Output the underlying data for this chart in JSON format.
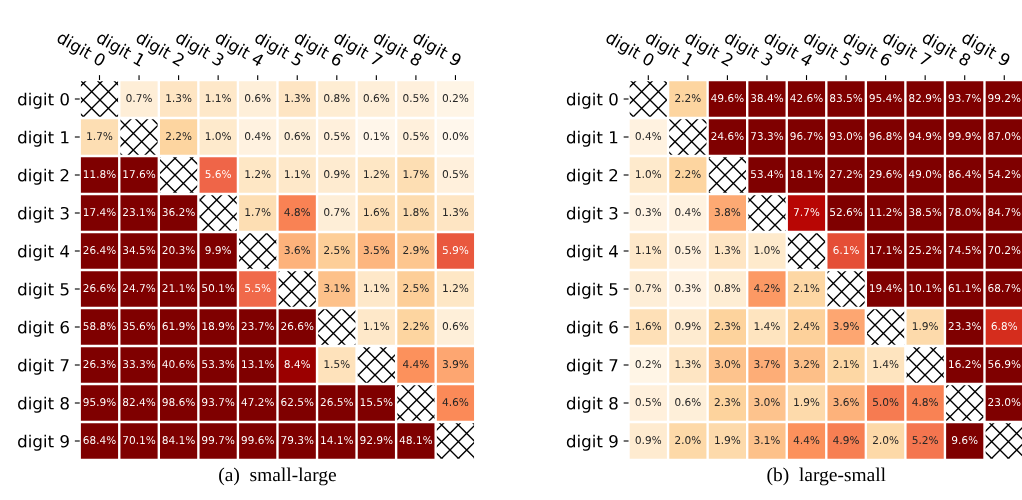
{
  "chart_data": [
    {
      "type": "heatmap",
      "xlabel": "(a)  small-large",
      "categories": [
        "digit 0",
        "digit 1",
        "digit 2",
        "digit 3",
        "digit 4",
        "digit 5",
        "digit 6",
        "digit 7",
        "digit 8",
        "digit 9"
      ],
      "y_categories": [
        "digit 0",
        "digit 1",
        "digit 2",
        "digit 3",
        "digit 4",
        "digit 5",
        "digit 6",
        "digit 7",
        "digit 8",
        "digit 9"
      ],
      "cells": [
        [
          null,
          0.7,
          1.3,
          1.1,
          0.6,
          1.3,
          0.8,
          0.6,
          0.5,
          0.2
        ],
        [
          1.7,
          null,
          2.2,
          1.0,
          0.4,
          0.6,
          0.5,
          0.1,
          0.5,
          0.0
        ],
        [
          11.8,
          17.6,
          null,
          5.6,
          1.2,
          1.1,
          0.9,
          1.2,
          1.7,
          0.5
        ],
        [
          17.4,
          23.1,
          36.2,
          null,
          1.7,
          4.8,
          0.7,
          1.6,
          1.8,
          1.3
        ],
        [
          26.4,
          34.5,
          20.3,
          9.9,
          null,
          3.6,
          2.5,
          3.5,
          2.9,
          5.9
        ],
        [
          26.6,
          24.7,
          21.1,
          50.1,
          5.5,
          null,
          3.1,
          1.1,
          2.5,
          1.2
        ],
        [
          58.8,
          35.6,
          61.9,
          18.9,
          23.7,
          26.6,
          null,
          1.1,
          2.2,
          0.6
        ],
        [
          26.3,
          33.3,
          40.6,
          53.3,
          13.1,
          8.4,
          1.5,
          null,
          4.4,
          3.9
        ],
        [
          95.9,
          82.4,
          98.6,
          93.7,
          47.2,
          62.5,
          26.5,
          15.5,
          null,
          4.6
        ],
        [
          68.4,
          70.1,
          84.1,
          99.7,
          99.6,
          79.3,
          14.1,
          92.9,
          48.1,
          null
        ]
      ],
      "cell_labels": [
        [
          null,
          "0.7%",
          "1.3%",
          "1.1%",
          "0.6%",
          "1.3%",
          "0.8%",
          "0.6%",
          "0.5%",
          "0.2%"
        ],
        [
          "1.7%",
          null,
          "2.2%",
          "1.0%",
          "0.4%",
          "0.6%",
          "0.5%",
          "0.1%",
          "0.5%",
          "0.0%"
        ],
        [
          "11.8%",
          "17.6%",
          null,
          "5.6%",
          "1.2%",
          "1.1%",
          "0.9%",
          "1.2%",
          "1.7%",
          "0.5%"
        ],
        [
          "17.4%",
          "23.1%",
          "36.2%",
          null,
          "1.7%",
          "4.8%",
          "0.7%",
          "1.6%",
          "1.8%",
          "1.3%"
        ],
        [
          "26.4%",
          "34.5%",
          "20.3%",
          "9.9%",
          null,
          "3.6%",
          "2.5%",
          "3.5%",
          "2.9%",
          "5.9%"
        ],
        [
          "26.6%",
          "24.7%",
          "21.1%",
          "50.1%",
          "5.5%",
          null,
          "3.1%",
          "1.1%",
          "2.5%",
          "1.2%"
        ],
        [
          "58.8%",
          "35.6%",
          "61.9%",
          "18.9%",
          "23.7%",
          "26.6%",
          null,
          "1.1%",
          "2.2%",
          "0.6%"
        ],
        [
          "26.3%",
          "33.3%",
          "40.6%",
          "53.3%",
          "13.1%",
          "8.4%",
          "1.5%",
          null,
          "4.4%",
          "3.9%"
        ],
        [
          "95.9%",
          "82.4%",
          "98.6%",
          "93.7%",
          "47.2%",
          "62.5%",
          "26.5%",
          "15.5%",
          null,
          "4.6%"
        ],
        [
          "68.4%",
          "70.1%",
          "84.1%",
          "99.7%",
          "99.6%",
          "79.3%",
          "14.1%",
          "92.9%",
          "48.1%",
          null
        ]
      ]
    },
    {
      "type": "heatmap",
      "xlabel": "(b)  large-small",
      "categories": [
        "digit 0",
        "digit 1",
        "digit 2",
        "digit 3",
        "digit 4",
        "digit 5",
        "digit 6",
        "digit 7",
        "digit 8",
        "digit 9"
      ],
      "y_categories": [
        "digit 0",
        "digit 1",
        "digit 2",
        "digit 3",
        "digit 4",
        "digit 5",
        "digit 6",
        "digit 7",
        "digit 8",
        "digit 9"
      ],
      "cells": [
        [
          null,
          2.2,
          49.6,
          38.4,
          42.6,
          83.5,
          95.4,
          82.9,
          93.7,
          99.2
        ],
        [
          0.4,
          null,
          24.6,
          73.3,
          96.7,
          93.0,
          96.8,
          94.9,
          99.9,
          87.0
        ],
        [
          1.0,
          2.2,
          null,
          53.4,
          18.1,
          27.2,
          29.6,
          49.0,
          86.4,
          54.2
        ],
        [
          0.3,
          0.4,
          3.8,
          null,
          7.7,
          52.6,
          11.2,
          38.5,
          78.0,
          84.7
        ],
        [
          1.1,
          0.5,
          1.3,
          1.0,
          null,
          6.1,
          17.1,
          25.2,
          74.5,
          70.2
        ],
        [
          0.7,
          0.3,
          0.8,
          4.2,
          2.1,
          null,
          19.4,
          10.1,
          61.1,
          68.7
        ],
        [
          1.6,
          0.9,
          2.3,
          1.4,
          2.4,
          3.9,
          null,
          1.9,
          23.3,
          6.8
        ],
        [
          0.2,
          1.3,
          3.0,
          3.7,
          3.2,
          2.1,
          1.4,
          null,
          16.2,
          56.9
        ],
        [
          0.5,
          0.6,
          2.3,
          3.0,
          1.9,
          3.6,
          5.0,
          4.8,
          null,
          23.0
        ],
        [
          0.9,
          2.0,
          1.9,
          3.1,
          4.4,
          4.9,
          2.0,
          5.2,
          9.6,
          null
        ]
      ],
      "cell_labels": [
        [
          null,
          "2.2%",
          "49.6%",
          "38.4%",
          "42.6%",
          "83.5%",
          "95.4%",
          "82.9%",
          "93.7%",
          "99.2%"
        ],
        [
          "0.4%",
          null,
          "24.6%",
          "73.3%",
          "96.7%",
          "93.0%",
          "96.8%",
          "94.9%",
          "99.9%",
          "87.0%"
        ],
        [
          "1.0%",
          "2.2%",
          null,
          "53.4%",
          "18.1%",
          "27.2%",
          "29.6%",
          "49.0%",
          "86.4%",
          "54.2%"
        ],
        [
          "0.3%",
          "0.4%",
          "3.8%",
          null,
          "7.7%",
          "52.6%",
          "11.2%",
          "38.5%",
          "78.0%",
          "84.7%"
        ],
        [
          "1.1%",
          "0.5%",
          "1.3%",
          "1.0%",
          null,
          "6.1%",
          "17.1%",
          "25.2%",
          "74.5%",
          "70.2%"
        ],
        [
          "0.7%",
          "0.3%",
          "0.8%",
          "4.2%",
          "2.1%",
          null,
          "19.4%",
          "10.1%",
          "61.1%",
          "68.7%"
        ],
        [
          "1.6%",
          "0.9%",
          "2.3%",
          "1.4%",
          "2.4%",
          "3.9%",
          null,
          "1.9%",
          "23.3%",
          "6.8%"
        ],
        [
          "0.2%",
          "1.3%",
          "3.0%",
          "3.7%",
          "3.2%",
          "2.1%",
          "1.4%",
          null,
          "16.2%",
          "56.9%"
        ],
        [
          "0.5%",
          "0.6%",
          "2.3%",
          "3.0%",
          "1.9%",
          "3.6%",
          "5.0%",
          "4.8%",
          null,
          "23.0%"
        ],
        [
          "0.9%",
          "2.0%",
          "1.9%",
          "3.1%",
          "4.4%",
          "4.9%",
          "2.0%",
          "5.2%",
          "9.6%",
          null
        ]
      ]
    }
  ]
}
